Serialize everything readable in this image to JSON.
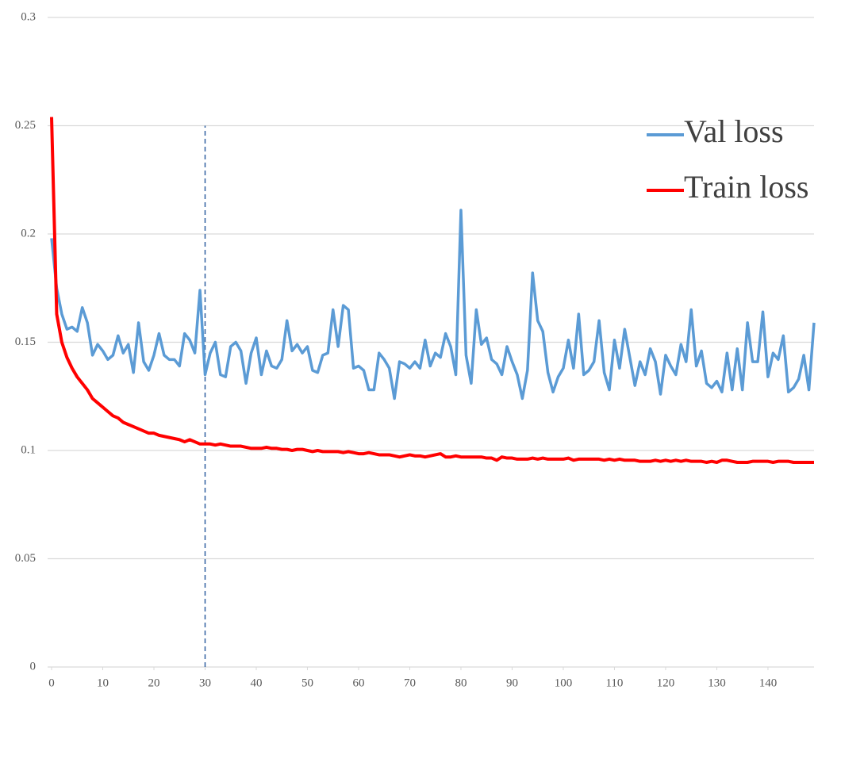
{
  "chart_data": {
    "type": "line",
    "x": [
      0,
      1,
      2,
      3,
      4,
      5,
      6,
      7,
      8,
      9,
      10,
      11,
      12,
      13,
      14,
      15,
      16,
      17,
      18,
      19,
      20,
      21,
      22,
      23,
      24,
      25,
      26,
      27,
      28,
      29,
      30,
      31,
      32,
      33,
      34,
      35,
      36,
      37,
      38,
      39,
      40,
      41,
      42,
      43,
      44,
      45,
      46,
      47,
      48,
      49,
      50,
      51,
      52,
      53,
      54,
      55,
      56,
      57,
      58,
      59,
      60,
      61,
      62,
      63,
      64,
      65,
      66,
      67,
      68,
      69,
      70,
      71,
      72,
      73,
      74,
      75,
      76,
      77,
      78,
      79,
      80,
      81,
      82,
      83,
      84,
      85,
      86,
      87,
      88,
      89,
      90,
      91,
      92,
      93,
      94,
      95,
      96,
      97,
      98,
      99,
      100,
      101,
      102,
      103,
      104,
      105,
      106,
      107,
      108,
      109,
      110,
      111,
      112,
      113,
      114,
      115,
      116,
      117,
      118,
      119,
      120,
      121,
      122,
      123,
      124,
      125,
      126,
      127,
      128,
      129,
      130,
      131,
      132,
      133,
      134,
      135,
      136,
      137,
      138,
      139,
      140,
      141,
      142,
      143,
      144,
      145,
      146,
      147,
      148,
      149
    ],
    "series": [
      {
        "name": "Val loss",
        "color": "#5b9bd5",
        "values": [
          0.198,
          0.175,
          0.163,
          0.156,
          0.157,
          0.155,
          0.166,
          0.159,
          0.144,
          0.149,
          0.146,
          0.142,
          0.144,
          0.153,
          0.145,
          0.149,
          0.136,
          0.159,
          0.141,
          0.137,
          0.144,
          0.154,
          0.144,
          0.142,
          0.142,
          0.139,
          0.154,
          0.151,
          0.145,
          0.174,
          0.135,
          0.145,
          0.15,
          0.135,
          0.134,
          0.148,
          0.15,
          0.146,
          0.131,
          0.145,
          0.152,
          0.135,
          0.146,
          0.139,
          0.138,
          0.142,
          0.16,
          0.146,
          0.149,
          0.145,
          0.148,
          0.137,
          0.136,
          0.144,
          0.145,
          0.165,
          0.148,
          0.167,
          0.165,
          0.138,
          0.139,
          0.137,
          0.128,
          0.128,
          0.145,
          0.142,
          0.138,
          0.124,
          0.141,
          0.14,
          0.138,
          0.141,
          0.138,
          0.151,
          0.139,
          0.145,
          0.143,
          0.154,
          0.148,
          0.135,
          0.211,
          0.144,
          0.131,
          0.165,
          0.149,
          0.152,
          0.142,
          0.14,
          0.135,
          0.148,
          0.141,
          0.135,
          0.124,
          0.137,
          0.182,
          0.16,
          0.155,
          0.136,
          0.127,
          0.134,
          0.138,
          0.151,
          0.138,
          0.163,
          0.135,
          0.137,
          0.141,
          0.16,
          0.136,
          0.128,
          0.151,
          0.138,
          0.156,
          0.143,
          0.13,
          0.141,
          0.135,
          0.147,
          0.141,
          0.126,
          0.144,
          0.139,
          0.135,
          0.149,
          0.141,
          0.165,
          0.139,
          0.146,
          0.131,
          0.129,
          0.132,
          0.127,
          0.145,
          0.128,
          0.147,
          0.128,
          0.159,
          0.141,
          0.141,
          0.164,
          0.134,
          0.145,
          0.142,
          0.153,
          0.127,
          0.129,
          0.133,
          0.144,
          0.128,
          0.159
        ]
      },
      {
        "name": "Train loss",
        "color": "#ff0000",
        "values": [
          0.254,
          0.163,
          0.15,
          0.143,
          0.138,
          0.134,
          0.131,
          0.128,
          0.124,
          0.122,
          0.12,
          0.118,
          0.116,
          0.115,
          0.113,
          0.112,
          0.111,
          0.11,
          0.109,
          0.108,
          0.108,
          0.107,
          0.1065,
          0.106,
          0.1055,
          0.105,
          0.104,
          0.105,
          0.104,
          0.103,
          0.103,
          0.103,
          0.1025,
          0.103,
          0.1025,
          0.102,
          0.102,
          0.102,
          0.1015,
          0.101,
          0.101,
          0.101,
          0.1015,
          0.101,
          0.101,
          0.1005,
          0.1005,
          0.1,
          0.1005,
          0.1005,
          0.1,
          0.0995,
          0.1,
          0.0995,
          0.0995,
          0.0995,
          0.0995,
          0.099,
          0.0995,
          0.099,
          0.0985,
          0.0985,
          0.099,
          0.0985,
          0.098,
          0.098,
          0.098,
          0.0975,
          0.097,
          0.0975,
          0.098,
          0.0975,
          0.0975,
          0.097,
          0.0975,
          0.098,
          0.0985,
          0.097,
          0.097,
          0.0975,
          0.097,
          0.097,
          0.097,
          0.097,
          0.097,
          0.0965,
          0.0965,
          0.0955,
          0.097,
          0.0965,
          0.0965,
          0.096,
          0.096,
          0.096,
          0.0965,
          0.096,
          0.0965,
          0.096,
          0.096,
          0.096,
          0.096,
          0.0965,
          0.0955,
          0.096,
          0.096,
          0.096,
          0.096,
          0.096,
          0.0955,
          0.096,
          0.0955,
          0.096,
          0.0955,
          0.0955,
          0.0955,
          0.095,
          0.095,
          0.095,
          0.0955,
          0.095,
          0.0955,
          0.095,
          0.0955,
          0.095,
          0.0955,
          0.095,
          0.095,
          0.095,
          0.0945,
          0.095,
          0.0945,
          0.0955,
          0.0955,
          0.095,
          0.0945,
          0.0945,
          0.0945,
          0.095,
          0.095,
          0.095,
          0.095,
          0.0945,
          0.095,
          0.095,
          0.095,
          0.0945,
          0.0945,
          0.0945,
          0.0945,
          0.0945
        ]
      }
    ],
    "xlim": [
      0,
      149
    ],
    "xticks": [
      0,
      10,
      20,
      30,
      40,
      50,
      60,
      70,
      80,
      90,
      100,
      110,
      120,
      130,
      140
    ],
    "ylim": [
      0,
      0.3
    ],
    "yticks": [
      0,
      0.05,
      0.1,
      0.15,
      0.2,
      0.25,
      0.3
    ],
    "grid": true,
    "legend": "top-right",
    "reference_line": {
      "x": 30,
      "y": [
        0,
        0.25
      ],
      "color": "#2e5fa0",
      "dashed": true
    }
  }
}
